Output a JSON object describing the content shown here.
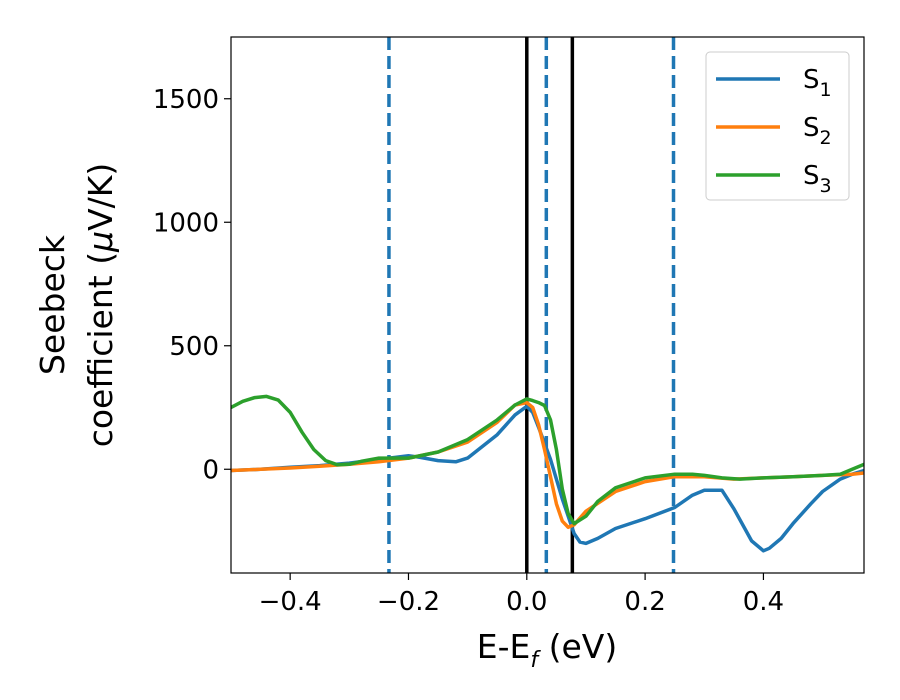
{
  "chart_data": {
    "type": "line",
    "xlabel": {
      "main": "E-E",
      "sub": "f",
      "rest": " (eV)"
    },
    "ylabel": {
      "line1": "Seebeck",
      "line2_prefix": "coefficient  (",
      "line2_mu": "μ",
      "line2_suffix": "V/K)"
    },
    "xlim": [
      -0.5,
      0.57
    ],
    "ylim": [
      -420,
      1750
    ],
    "xticks": [
      -0.4,
      -0.2,
      0.0,
      0.2,
      0.4
    ],
    "xtick_labels": [
      "−0.4",
      "−0.2",
      "0.0",
      "0.2",
      "0.4"
    ],
    "yticks": [
      0,
      500,
      1000,
      1500
    ],
    "ytick_labels": [
      "0",
      "500",
      "1000",
      "1500"
    ],
    "grid": false,
    "legend_position": "top-right",
    "vlines_solid": [
      0.0,
      0.077
    ],
    "vlines_dashed": [
      -0.233,
      0.033,
      0.248
    ],
    "series": [
      {
        "name": "S",
        "subscript": "1",
        "color": "#1f77b4",
        "x": [
          -0.5,
          -0.45,
          -0.4,
          -0.35,
          -0.3,
          -0.25,
          -0.2,
          -0.18,
          -0.15,
          -0.12,
          -0.1,
          -0.05,
          -0.02,
          0.0,
          0.01,
          0.02,
          0.04,
          0.06,
          0.08,
          0.09,
          0.1,
          0.12,
          0.15,
          0.2,
          0.25,
          0.28,
          0.3,
          0.33,
          0.35,
          0.38,
          0.4,
          0.41,
          0.43,
          0.45,
          0.48,
          0.5,
          0.53,
          0.55,
          0.57
        ],
        "y": [
          -5,
          0,
          8,
          15,
          25,
          40,
          55,
          48,
          35,
          30,
          45,
          140,
          220,
          255,
          230,
          170,
          40,
          -120,
          -260,
          -295,
          -300,
          -280,
          -240,
          -200,
          -155,
          -105,
          -85,
          -85,
          -160,
          -290,
          -330,
          -320,
          -280,
          -220,
          -140,
          -90,
          -40,
          -20,
          -5
        ]
      },
      {
        "name": "S",
        "subscript": "2",
        "color": "#ff7f0e",
        "x": [
          -0.5,
          -0.45,
          -0.4,
          -0.35,
          -0.3,
          -0.25,
          -0.2,
          -0.15,
          -0.1,
          -0.05,
          -0.02,
          0.0,
          0.01,
          0.02,
          0.03,
          0.04,
          0.05,
          0.06,
          0.07,
          0.08,
          0.1,
          0.15,
          0.2,
          0.25,
          0.3,
          0.35,
          0.4,
          0.45,
          0.5,
          0.55,
          0.57
        ],
        "y": [
          -5,
          0,
          5,
          12,
          20,
          30,
          45,
          70,
          110,
          190,
          260,
          270,
          250,
          180,
          80,
          -30,
          -140,
          -210,
          -235,
          -225,
          -170,
          -90,
          -50,
          -30,
          -30,
          -40,
          -35,
          -30,
          -25,
          -20,
          -15
        ]
      },
      {
        "name": "S",
        "subscript": "3",
        "color": "#2ca02c",
        "x": [
          -0.5,
          -0.48,
          -0.46,
          -0.44,
          -0.42,
          -0.4,
          -0.38,
          -0.36,
          -0.34,
          -0.32,
          -0.3,
          -0.28,
          -0.25,
          -0.2,
          -0.15,
          -0.1,
          -0.05,
          -0.02,
          0.0,
          0.01,
          0.02,
          0.03,
          0.04,
          0.05,
          0.06,
          0.07,
          0.08,
          0.1,
          0.12,
          0.15,
          0.2,
          0.25,
          0.28,
          0.3,
          0.33,
          0.36,
          0.4,
          0.45,
          0.5,
          0.53,
          0.55,
          0.57
        ],
        "y": [
          250,
          275,
          290,
          295,
          280,
          230,
          150,
          80,
          35,
          18,
          20,
          32,
          45,
          45,
          70,
          120,
          200,
          260,
          285,
          278,
          270,
          258,
          200,
          80,
          -80,
          -180,
          -220,
          -190,
          -130,
          -75,
          -35,
          -20,
          -20,
          -25,
          -35,
          -40,
          -35,
          -30,
          -25,
          -20,
          0,
          20
        ]
      }
    ]
  }
}
